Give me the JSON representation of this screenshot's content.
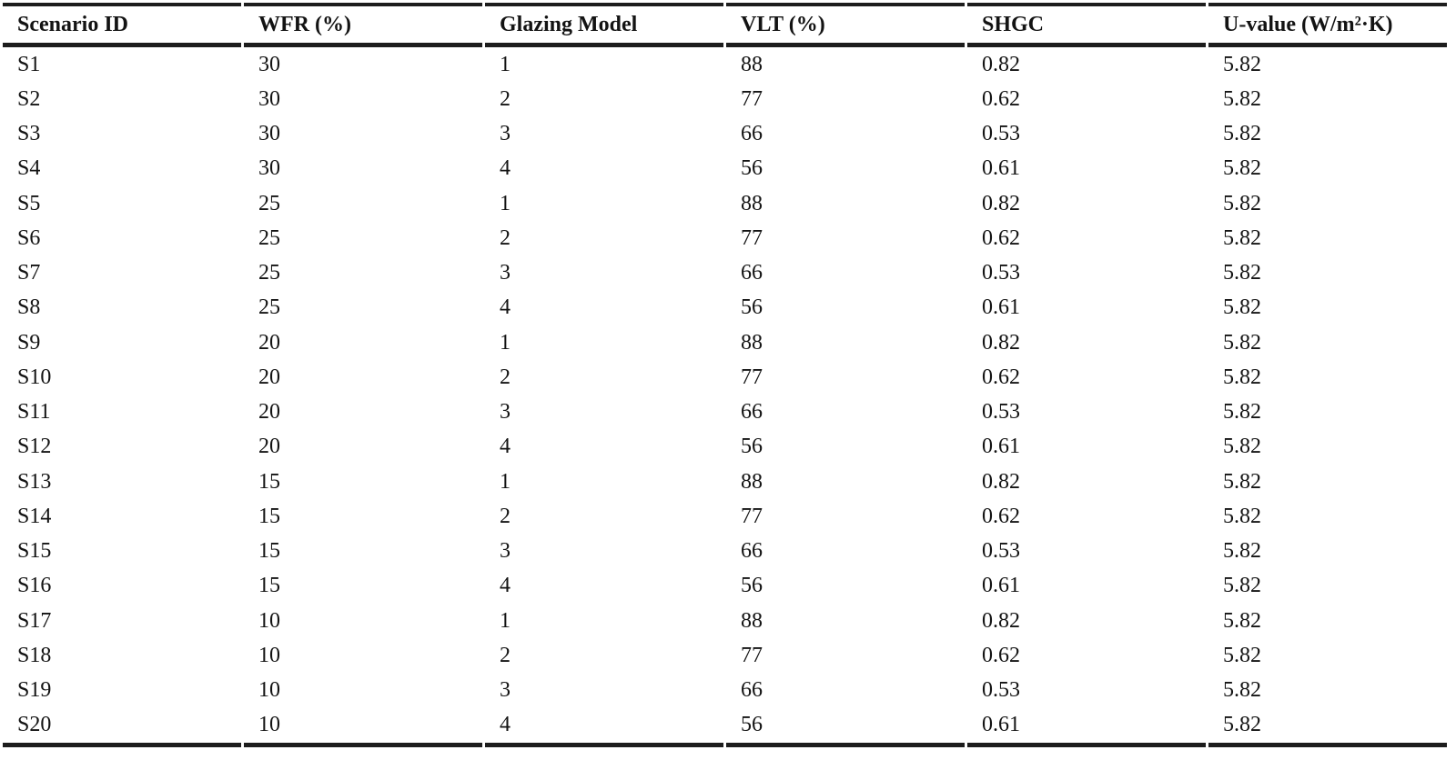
{
  "colors": {
    "background": "#ffffff",
    "text": "#131313",
    "rule": "#1d1d1d"
  },
  "table": {
    "columns": [
      "Scenario ID",
      "WFR (%)",
      "Glazing Model",
      "VLT (%)",
      "SHGC",
      "U-value (W/m²·K)"
    ],
    "rows": [
      [
        "S1",
        "30",
        "1",
        "88",
        "0.82",
        "5.82"
      ],
      [
        "S2",
        "30",
        "2",
        "77",
        "0.62",
        "5.82"
      ],
      [
        "S3",
        "30",
        "3",
        "66",
        "0.53",
        "5.82"
      ],
      [
        "S4",
        "30",
        "4",
        "56",
        "0.61",
        "5.82"
      ],
      [
        "S5",
        "25",
        "1",
        "88",
        "0.82",
        "5.82"
      ],
      [
        "S6",
        "25",
        "2",
        "77",
        "0.62",
        "5.82"
      ],
      [
        "S7",
        "25",
        "3",
        "66",
        "0.53",
        "5.82"
      ],
      [
        "S8",
        "25",
        "4",
        "56",
        "0.61",
        "5.82"
      ],
      [
        "S9",
        "20",
        "1",
        "88",
        "0.82",
        "5.82"
      ],
      [
        "S10",
        "20",
        "2",
        "77",
        "0.62",
        "5.82"
      ],
      [
        "S11",
        "20",
        "3",
        "66",
        "0.53",
        "5.82"
      ],
      [
        "S12",
        "20",
        "4",
        "56",
        "0.61",
        "5.82"
      ],
      [
        "S13",
        "15",
        "1",
        "88",
        "0.82",
        "5.82"
      ],
      [
        "S14",
        "15",
        "2",
        "77",
        "0.62",
        "5.82"
      ],
      [
        "S15",
        "15",
        "3",
        "66",
        "0.53",
        "5.82"
      ],
      [
        "S16",
        "15",
        "4",
        "56",
        "0.61",
        "5.82"
      ],
      [
        "S17",
        "10",
        "1",
        "88",
        "0.82",
        "5.82"
      ],
      [
        "S18",
        "10",
        "2",
        "77",
        "0.62",
        "5.82"
      ],
      [
        "S19",
        "10",
        "3",
        "66",
        "0.53",
        "5.82"
      ],
      [
        "S20",
        "10",
        "4",
        "56",
        "0.61",
        "5.82"
      ]
    ]
  }
}
